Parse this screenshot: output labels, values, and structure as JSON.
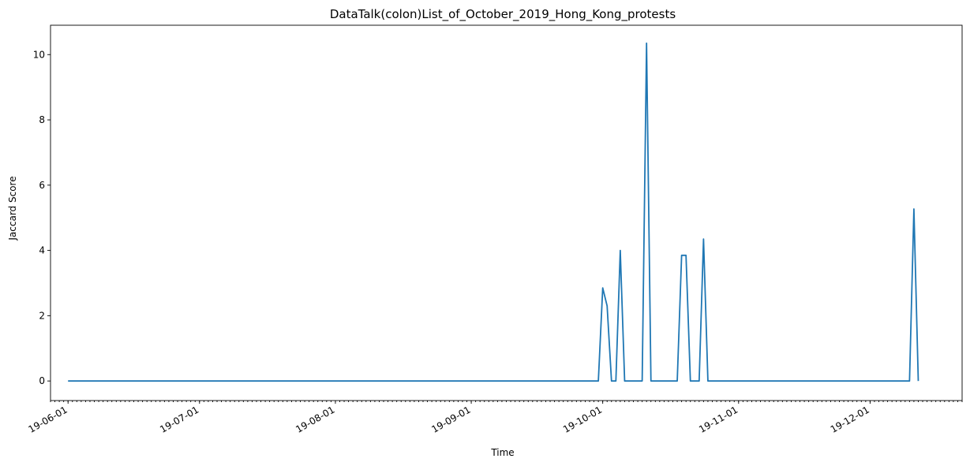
{
  "chart_data": {
    "type": "line",
    "title": "DataTalk(colon)List_of_October_2019_Hong_Kong_protests",
    "xlabel": "Time",
    "ylabel": "Jaccard Score",
    "x_type": "date",
    "xlim": [
      "2019-05-28",
      "2019-12-22"
    ],
    "ylim": [
      -0.6,
      10.9
    ],
    "yticks": [
      0,
      2,
      4,
      6,
      8,
      10
    ],
    "xticks": [
      {
        "date": "2019-06-01",
        "label": "19-06-01"
      },
      {
        "date": "2019-07-01",
        "label": "19-07-01"
      },
      {
        "date": "2019-08-01",
        "label": "19-08-01"
      },
      {
        "date": "2019-09-01",
        "label": "19-09-01"
      },
      {
        "date": "2019-10-01",
        "label": "19-10-01"
      },
      {
        "date": "2019-11-01",
        "label": "19-11-01"
      },
      {
        "date": "2019-12-01",
        "label": "19-12-01"
      }
    ],
    "grid": false,
    "color": "#1f77b4",
    "series": [
      {
        "points": [
          [
            "2019-06-01",
            0
          ],
          [
            "2019-09-30",
            0
          ],
          [
            "2019-10-01",
            2.85
          ],
          [
            "2019-10-02",
            2.3
          ],
          [
            "2019-10-03",
            0
          ],
          [
            "2019-10-04",
            0
          ],
          [
            "2019-10-05",
            4.0
          ],
          [
            "2019-10-06",
            0
          ],
          [
            "2019-10-10",
            0
          ],
          [
            "2019-10-11",
            10.35
          ],
          [
            "2019-10-12",
            0
          ],
          [
            "2019-10-18",
            0
          ],
          [
            "2019-10-19",
            3.85
          ],
          [
            "2019-10-20",
            3.85
          ],
          [
            "2019-10-21",
            0
          ],
          [
            "2019-10-23",
            0
          ],
          [
            "2019-10-24",
            4.35
          ],
          [
            "2019-10-25",
            0
          ],
          [
            "2019-12-10",
            0
          ],
          [
            "2019-12-11",
            5.27
          ],
          [
            "2019-12-12",
            0
          ]
        ]
      }
    ]
  }
}
